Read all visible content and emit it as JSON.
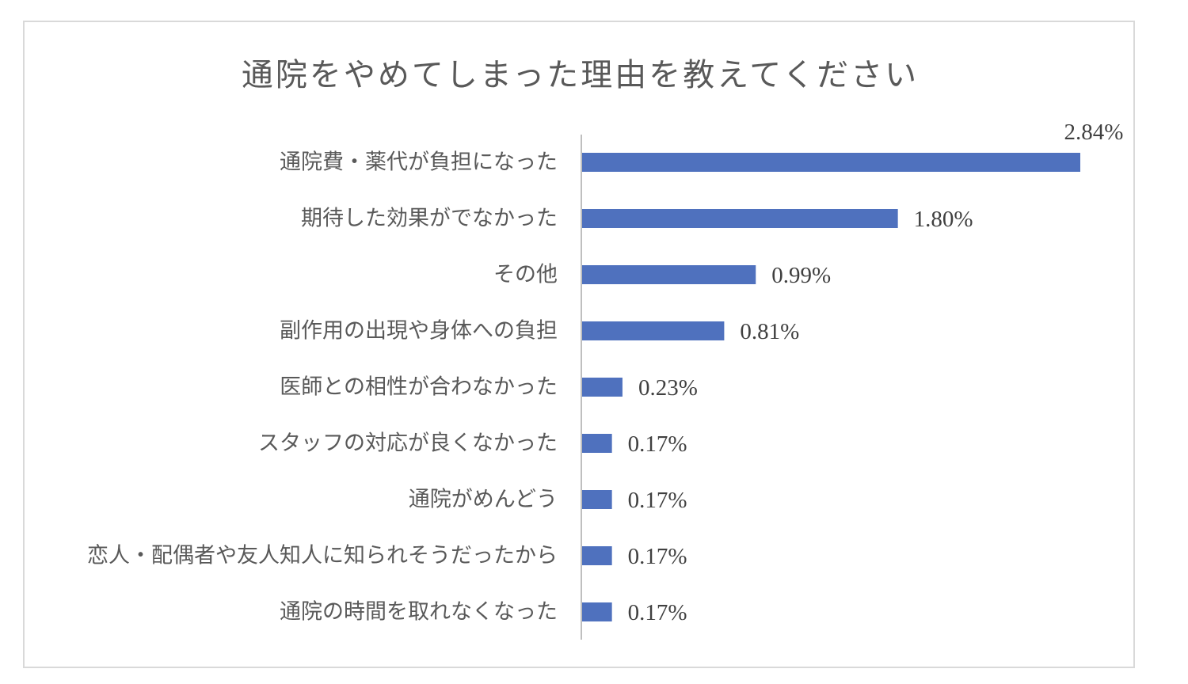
{
  "chart_data": {
    "type": "bar",
    "orientation": "horizontal",
    "title": "通院をやめてしまった理由を教えてください",
    "categories": [
      "通院費・薬代が負担になった",
      "期待した効果がでなかった",
      "その他",
      "副作用の出現や身体への負担",
      "医師との相性が合わなかった",
      "スタッフの対応が良くなかった",
      "通院がめんどう",
      "恋人・配偶者や友人知人に知られそうだったから",
      "通院の時間を取れなくなった"
    ],
    "values": [
      2.84,
      1.8,
      0.99,
      0.81,
      0.23,
      0.17,
      0.17,
      0.17,
      0.17
    ],
    "value_labels": [
      "2.84%",
      "1.80%",
      "0.99%",
      "0.81%",
      "0.23%",
      "0.17%",
      "0.17%",
      "0.17%",
      "0.17%"
    ],
    "unit": "%",
    "bar_color": "#4f71be",
    "xlim": [
      0,
      3.0
    ],
    "grid": false,
    "legend": "none"
  }
}
